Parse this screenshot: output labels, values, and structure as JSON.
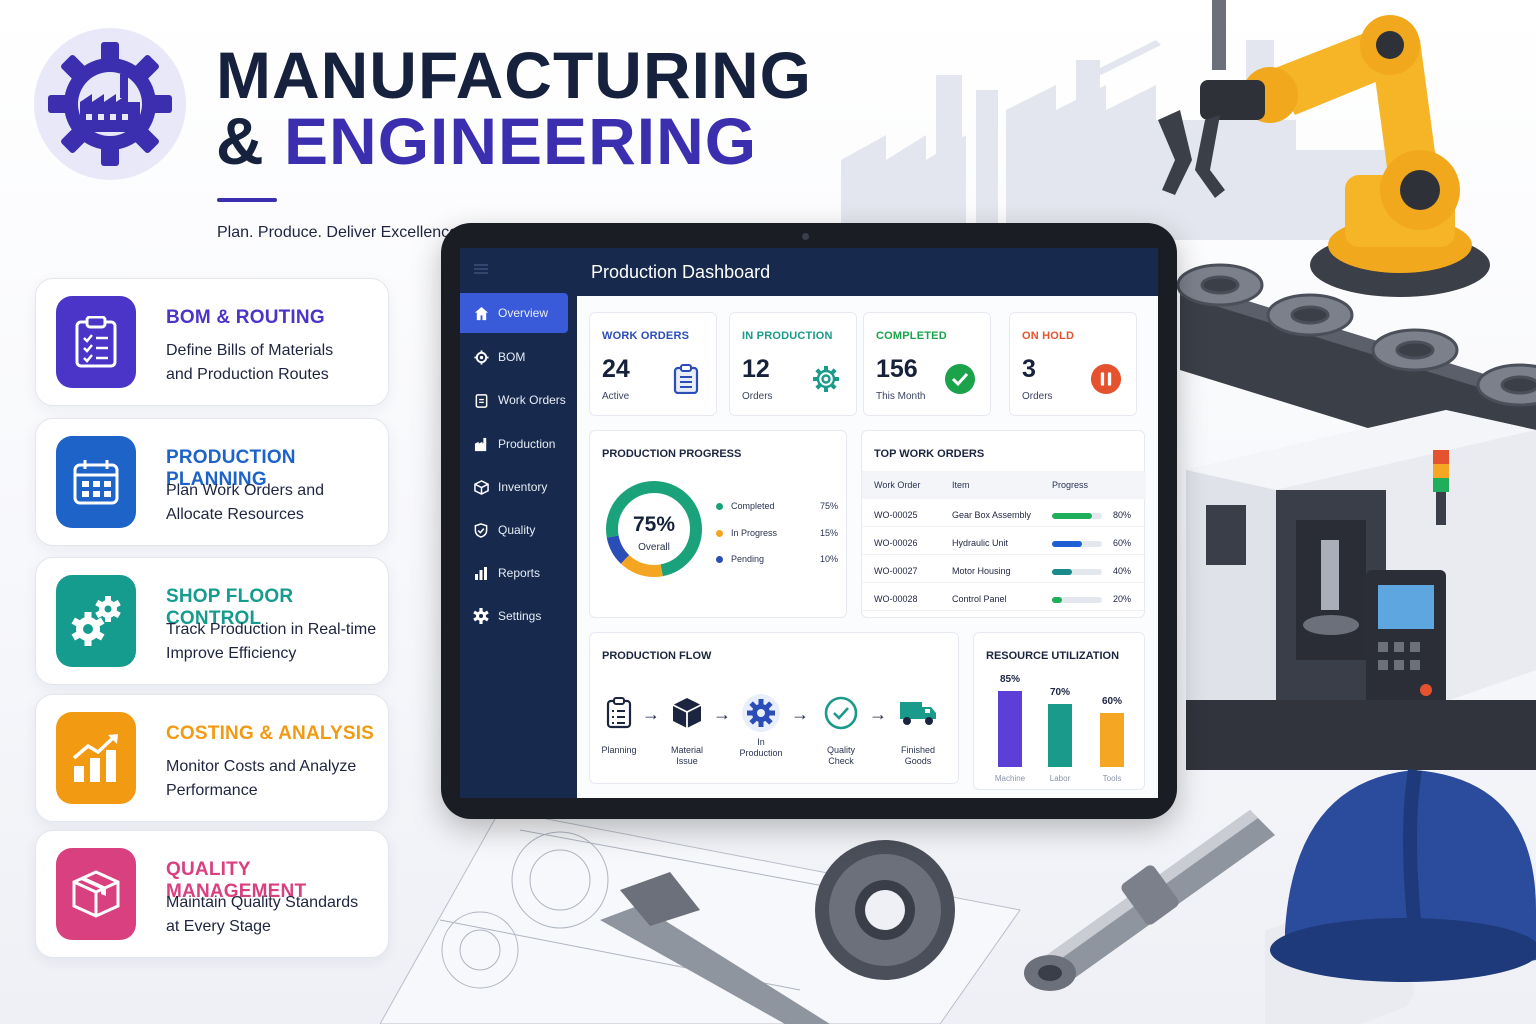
{
  "header": {
    "title_line1": "MANUFACTURING",
    "title_amp": "&",
    "title_line2": "ENGINEERING",
    "tagline": "Plan. Produce. Deliver Excellence."
  },
  "colors": {
    "primary": "#3b2fb0",
    "navy": "#15213d",
    "accent_blue": "#3a5bd9"
  },
  "features": [
    {
      "title": "BOM & ROUTING",
      "desc_line1": "Define Bills of Materials",
      "desc_line2": "and Production Routes",
      "color": "#4a35c8",
      "icon": "clipboard-icon"
    },
    {
      "title": "PRODUCTION PLANNING",
      "desc_line1": "Plan Work Orders and",
      "desc_line2": "Allocate Resources",
      "color": "#1e63c8",
      "icon": "calendar-icon"
    },
    {
      "title": "SHOP FLOOR CONTROL",
      "desc_line1": "Track Production in Real-time",
      "desc_line2": "Improve Efficiency",
      "color": "#169c8e",
      "icon": "gears-icon"
    },
    {
      "title": "COSTING & ANALYSIS",
      "desc_line1": "Monitor Costs and Analyze",
      "desc_line2": "Performance",
      "color": "#f29a12",
      "icon": "growth-chart-icon"
    },
    {
      "title": "QUALITY MANAGEMENT",
      "desc_line1": "Maintain Quality Standards",
      "desc_line2": "at Every Stage",
      "color": "#d9407f",
      "icon": "box-icon"
    }
  ],
  "dashboard": {
    "title": "Production Dashboard",
    "nav": [
      {
        "label": "Overview",
        "icon": "home-icon",
        "active": true
      },
      {
        "label": "BOM",
        "icon": "gear-icon"
      },
      {
        "label": "Work Orders",
        "icon": "clipboard-icon"
      },
      {
        "label": "Production",
        "icon": "factory-icon"
      },
      {
        "label": "Inventory",
        "icon": "cube-icon"
      },
      {
        "label": "Quality",
        "icon": "shield-check-icon"
      },
      {
        "label": "Reports",
        "icon": "bar-chart-icon"
      },
      {
        "label": "Settings",
        "icon": "settings-icon"
      }
    ],
    "stats": [
      {
        "label": "WORK ORDERS",
        "value": "24",
        "sub": "Active",
        "color": "#2a4db8",
        "icon": "clipboard-icon"
      },
      {
        "label": "IN PRODUCTION",
        "value": "12",
        "sub": "Orders",
        "color": "#1a9a8a",
        "icon": "gear-icon"
      },
      {
        "label": "COMPLETED",
        "value": "156",
        "sub": "This Month",
        "color": "#1aa34a",
        "icon": "check-circle-icon"
      },
      {
        "label": "ON HOLD",
        "value": "3",
        "sub": "Orders",
        "color": "#e5532e",
        "icon": "pause-circle-icon"
      }
    ],
    "progress": {
      "title": "PRODUCTION PROGRESS",
      "center_value": "75%",
      "center_label": "Overall",
      "legend": [
        {
          "label": "Completed",
          "value": "75%",
          "pct": 75,
          "color": "#1aa37a"
        },
        {
          "label": "In Progress",
          "value": "15%",
          "pct": 15,
          "color": "#f4a623"
        },
        {
          "label": "Pending",
          "value": "10%",
          "pct": 10,
          "color": "#2a4db8"
        }
      ]
    },
    "work_orders": {
      "title": "TOP WORK ORDERS",
      "headers": {
        "order": "Work Order",
        "item": "Item",
        "progress": "Progress"
      },
      "rows": [
        {
          "order": "WO-00025",
          "item": "Gear Box Assembly",
          "progress": 80,
          "progress_label": "80%",
          "color": "#1fae5b"
        },
        {
          "order": "WO-00026",
          "item": "Hydraulic Unit",
          "progress": 60,
          "progress_label": "60%",
          "color": "#1f5fd6"
        },
        {
          "order": "WO-00027",
          "item": "Motor Housing",
          "progress": 40,
          "progress_label": "40%",
          "color": "#1a8a8a"
        },
        {
          "order": "WO-00028",
          "item": "Control Panel",
          "progress": 20,
          "progress_label": "20%",
          "color": "#1fae5b"
        }
      ]
    },
    "flow": {
      "title": "PRODUCTION FLOW",
      "steps": [
        {
          "label_line1": "Planning",
          "label_line2": "",
          "icon": "clipboard-icon"
        },
        {
          "label_line1": "Material",
          "label_line2": "Issue",
          "icon": "cube-icon"
        },
        {
          "label_line1": "In",
          "label_line2": "Production",
          "icon": "gear-icon"
        },
        {
          "label_line1": "Quality",
          "label_line2": "Check",
          "icon": "check-circle-icon"
        },
        {
          "label_line1": "Finished",
          "label_line2": "Goods",
          "icon": "truck-icon"
        }
      ],
      "arrow": "→"
    },
    "resources": {
      "title": "RESOURCE UTILIZATION",
      "items": [
        {
          "label": "Machine",
          "value": 85,
          "value_label": "85%",
          "color": "#5b3fd6"
        },
        {
          "label": "Labor",
          "value": 70,
          "value_label": "70%",
          "color": "#1a9a8a"
        },
        {
          "label": "Tools",
          "value": 60,
          "value_label": "60%",
          "color": "#f5a623"
        }
      ]
    }
  }
}
